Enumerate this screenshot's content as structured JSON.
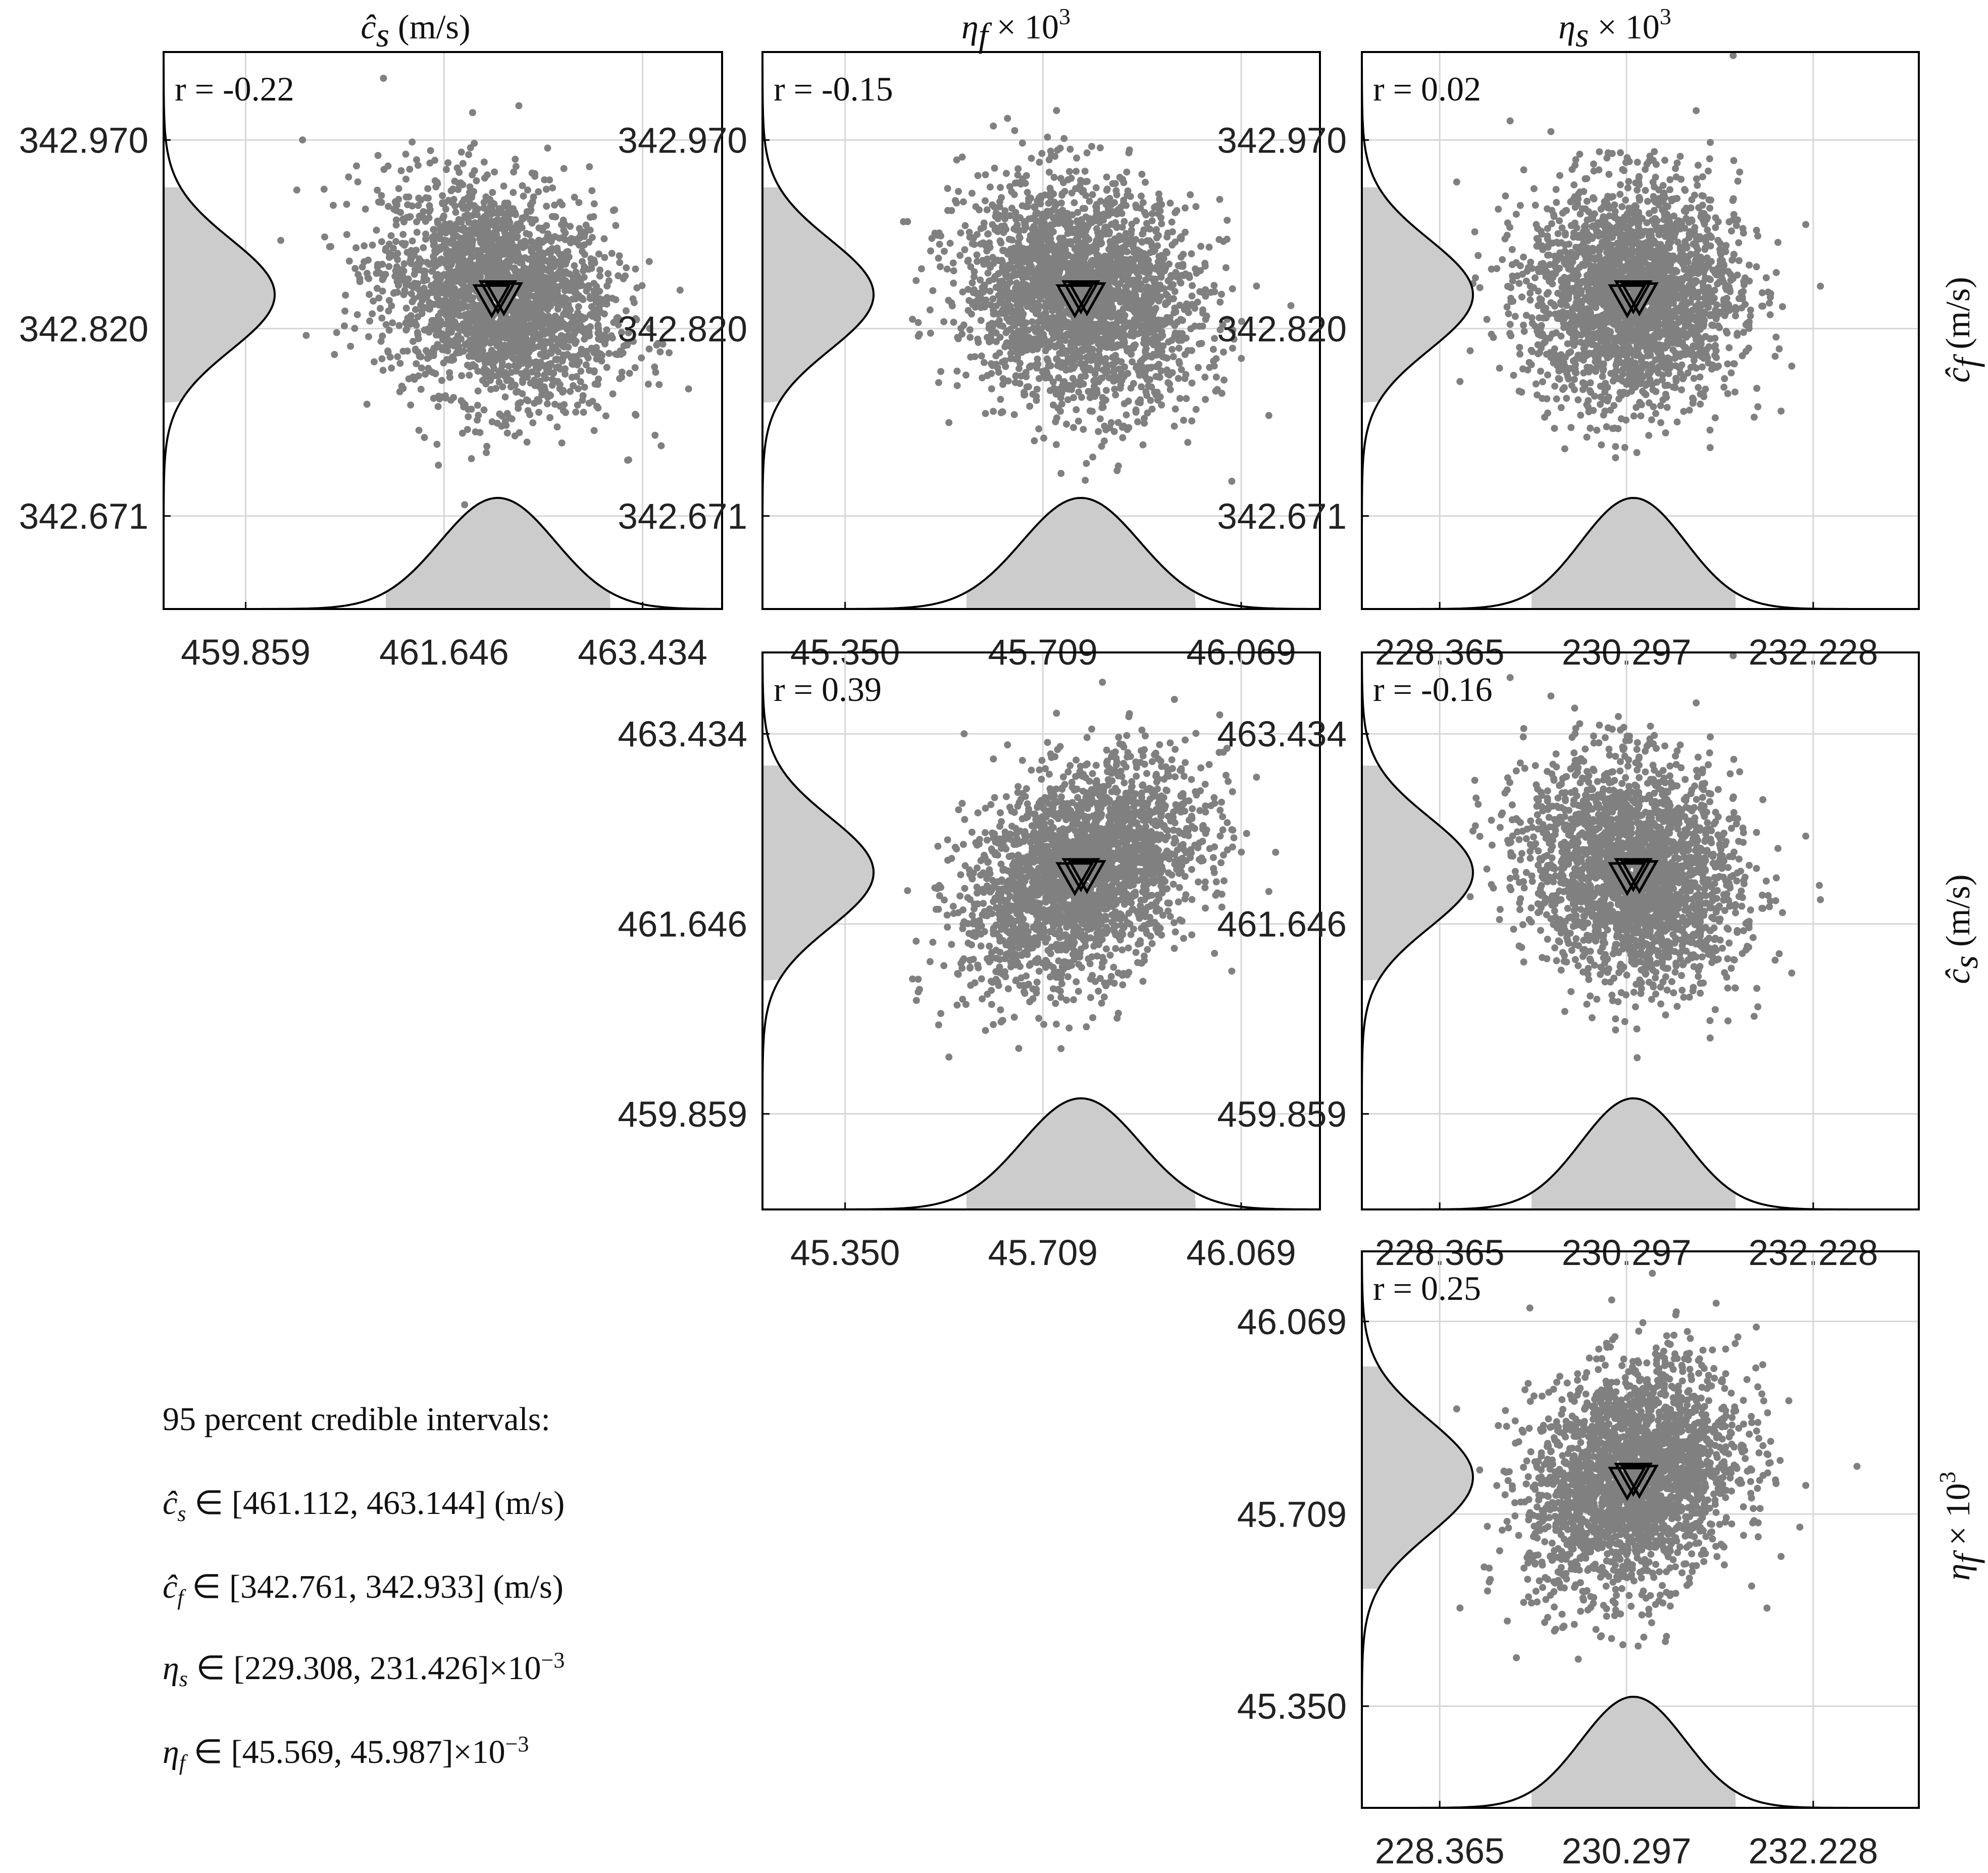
{
  "figure": {
    "column_titles": [
      {
        "sym": "ĉ",
        "sub": "s",
        "rest": " (m/s)",
        "sup": ""
      },
      {
        "sym": "η",
        "sub": "f",
        "rest": " × 10",
        "sup": "3"
      },
      {
        "sym": "η",
        "sub": "s",
        "rest": " × 10",
        "sup": "3"
      }
    ],
    "row_titles": [
      {
        "sym": "ĉ",
        "sub": "f",
        "rest": " (m/s)",
        "sup": ""
      },
      {
        "sym": "ĉ",
        "sub": "s",
        "rest": " (m/s)",
        "sup": ""
      },
      {
        "sym": "η",
        "sub": "f",
        "rest": " × 10",
        "sup": "3"
      }
    ]
  },
  "credible_intervals": {
    "heading": "95 percent credible intervals:",
    "lines": [
      {
        "sym": "ĉ",
        "sub": "s",
        "text": " ∈ [461.112, 463.144] (m/s)",
        "sup": ""
      },
      {
        "sym": "ĉ",
        "sub": "f",
        "text": " ∈ [342.761, 342.933] (m/s)",
        "sup": ""
      },
      {
        "sym": "η",
        "sub": "s",
        "text": " ∈ [229.308, 231.426]×10",
        "sup": "−3"
      },
      {
        "sym": "η",
        "sub": "f",
        "text": " ∈ [45.569, 45.987]×10",
        "sup": "−3"
      }
    ]
  },
  "colors": {
    "scatter": "#808080",
    "shade": "#cccccc",
    "grid": "#d7d7d7",
    "axis": "#000000"
  },
  "chart_data": [
    {
      "type": "scatter",
      "panel": "cf-vs-cs",
      "x_param": "ĉs (m/s)",
      "y_param": "ĉf (m/s)",
      "r_label": "r = -0.22",
      "r": -0.22,
      "x_ticks": [
        "459.859",
        "461.646",
        "463.434"
      ],
      "y_ticks": [
        "342.671",
        "342.820",
        "342.970"
      ],
      "x_tick_values": [
        459.859,
        461.646,
        463.434
      ],
      "y_tick_values": [
        342.671,
        342.82,
        342.97
      ],
      "xlim": [
        459.12,
        464.15
      ],
      "ylim": [
        342.597,
        343.04
      ],
      "x_mean": 462.13,
      "x_sd": 0.52,
      "y_mean": 342.847,
      "y_sd": 0.044,
      "x_ci95": [
        461.112,
        463.144
      ],
      "y_ci95": [
        342.761,
        342.933
      ],
      "marker_x": 462.13,
      "marker_y": 342.847,
      "n_points": 2400
    },
    {
      "type": "scatter",
      "panel": "cf-vs-etaf",
      "x_param": "ηf × 10³",
      "y_param": "ĉf (m/s)",
      "r_label": "r = -0.15",
      "r": -0.15,
      "x_ticks": [
        "45.350",
        "45.709",
        "46.069"
      ],
      "y_ticks": [
        "342.671",
        "342.820",
        "342.970"
      ],
      "x_tick_values": [
        45.35,
        45.709,
        46.069
      ],
      "y_tick_values": [
        342.671,
        342.82,
        342.97
      ],
      "xlim": [
        45.2,
        46.212
      ],
      "ylim": [
        342.597,
        343.04
      ],
      "x_mean": 45.778,
      "x_sd": 0.107,
      "y_mean": 342.847,
      "y_sd": 0.044,
      "x_ci95": [
        45.569,
        45.987
      ],
      "y_ci95": [
        342.761,
        342.933
      ],
      "marker_x": 45.778,
      "marker_y": 342.847,
      "n_points": 2400
    },
    {
      "type": "scatter",
      "panel": "cf-vs-etas",
      "x_param": "ηs × 10³",
      "y_param": "ĉf (m/s)",
      "r_label": "r = 0.02",
      "r": 0.02,
      "x_ticks": [
        "228.365",
        "230.297",
        "232.228"
      ],
      "y_ticks": [
        "342.671",
        "342.820",
        "342.970"
      ],
      "x_tick_values": [
        228.365,
        230.297,
        232.228
      ],
      "y_tick_values": [
        342.671,
        342.82,
        342.97
      ],
      "xlim": [
        227.56,
        233.32
      ],
      "ylim": [
        342.597,
        343.04
      ],
      "x_mean": 230.367,
      "x_sd": 0.54,
      "y_mean": 342.847,
      "y_sd": 0.044,
      "x_ci95": [
        229.308,
        231.426
      ],
      "y_ci95": [
        342.761,
        342.933
      ],
      "marker_x": 230.367,
      "marker_y": 342.847,
      "n_points": 2400
    },
    {
      "type": "scatter",
      "panel": "cs-vs-etaf",
      "x_param": "ηf × 10³",
      "y_param": "ĉs (m/s)",
      "r_label": "r = 0.39",
      "r": 0.39,
      "x_ticks": [
        "45.350",
        "45.709",
        "46.069"
      ],
      "y_ticks": [
        "459.859",
        "461.646",
        "463.434"
      ],
      "x_tick_values": [
        45.35,
        45.709,
        46.069
      ],
      "y_tick_values": [
        459.859,
        461.646,
        463.434
      ],
      "xlim": [
        45.2,
        46.212
      ],
      "ylim": [
        458.96,
        464.2
      ],
      "x_mean": 45.778,
      "x_sd": 0.107,
      "y_mean": 462.13,
      "y_sd": 0.52,
      "x_ci95": [
        45.569,
        45.987
      ],
      "y_ci95": [
        461.112,
        463.144
      ],
      "marker_x": 45.778,
      "marker_y": 462.13,
      "n_points": 2400
    },
    {
      "type": "scatter",
      "panel": "cs-vs-etas",
      "x_param": "ηs × 10³",
      "y_param": "ĉs (m/s)",
      "r_label": "r = -0.16",
      "r": -0.16,
      "x_ticks": [
        "228.365",
        "230.297",
        "232.228"
      ],
      "y_ticks": [
        "459.859",
        "461.646",
        "463.434"
      ],
      "x_tick_values": [
        228.365,
        230.297,
        232.228
      ],
      "y_tick_values": [
        459.859,
        461.646,
        463.434
      ],
      "xlim": [
        227.56,
        233.32
      ],
      "ylim": [
        458.96,
        464.2
      ],
      "x_mean": 230.367,
      "x_sd": 0.54,
      "y_mean": 462.13,
      "y_sd": 0.52,
      "x_ci95": [
        229.308,
        231.426
      ],
      "y_ci95": [
        461.112,
        463.144
      ],
      "marker_x": 230.367,
      "marker_y": 462.13,
      "n_points": 2400
    },
    {
      "type": "scatter",
      "panel": "etaf-vs-etas",
      "x_param": "ηs × 10³",
      "y_param": "ηf × 10³",
      "r_label": "r = 0.25",
      "r": 0.25,
      "x_ticks": [
        "228.365",
        "230.297",
        "232.228"
      ],
      "y_ticks": [
        "45.350",
        "45.709",
        "46.069"
      ],
      "x_tick_values": [
        228.365,
        230.297,
        232.228
      ],
      "y_tick_values": [
        45.35,
        45.709,
        46.069
      ],
      "xlim": [
        227.56,
        233.32
      ],
      "ylim": [
        45.16,
        46.2
      ],
      "x_mean": 230.367,
      "x_sd": 0.54,
      "y_mean": 45.778,
      "y_sd": 0.107,
      "x_ci95": [
        229.308,
        231.426
      ],
      "y_ci95": [
        45.569,
        45.987
      ],
      "marker_x": 230.367,
      "marker_y": 45.778,
      "n_points": 2400
    }
  ]
}
